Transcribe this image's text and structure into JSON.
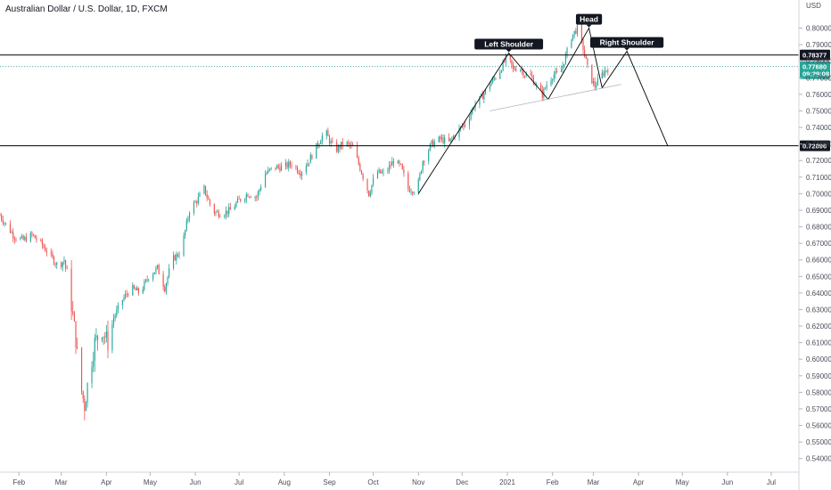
{
  "title": "Australian Dollar / U.S. Dollar, 1D, FXCM",
  "colors": {
    "up": "#26a69a",
    "down": "#ef5350",
    "line": "#000000",
    "current": "#26a69a",
    "grid": "#e0e3eb",
    "text": "#4a4e59"
  },
  "chart_data": {
    "type": "candlestick",
    "currency_label": "USD",
    "y_ticks": [
      0.54,
      0.55,
      0.56,
      0.57,
      0.58,
      0.59,
      0.6,
      0.61,
      0.62,
      0.63,
      0.64,
      0.65,
      0.66,
      0.67,
      0.68,
      0.69,
      0.7,
      0.71,
      0.72,
      0.73,
      0.74,
      0.75,
      0.76,
      0.77,
      0.78,
      0.79,
      0.8
    ],
    "y_range": [
      0.535,
      0.81
    ],
    "x_ticks": [
      {
        "label": "Feb",
        "day": 13
      },
      {
        "label": "Mar",
        "day": 42
      },
      {
        "label": "Apr",
        "day": 73
      },
      {
        "label": "May",
        "day": 103
      },
      {
        "label": "Jun",
        "day": 134
      },
      {
        "label": "Jul",
        "day": 164
      },
      {
        "label": "Aug",
        "day": 195
      },
      {
        "label": "Sep",
        "day": 226
      },
      {
        "label": "Oct",
        "day": 256
      },
      {
        "label": "Nov",
        "day": 287
      },
      {
        "label": "Dec",
        "day": 317
      },
      {
        "label": "2021",
        "day": 348
      },
      {
        "label": "Feb",
        "day": 379
      },
      {
        "label": "Mar",
        "day": 407
      },
      {
        "label": "Apr",
        "day": 438
      },
      {
        "label": "May",
        "day": 468
      },
      {
        "label": "Jun",
        "day": 499
      },
      {
        "label": "Jul",
        "day": 529
      }
    ],
    "x_range": [
      0,
      548
    ],
    "price_path": [
      [
        0,
        0.687
      ],
      [
        5,
        0.68
      ],
      [
        10,
        0.674
      ],
      [
        16,
        0.672
      ],
      [
        22,
        0.675
      ],
      [
        28,
        0.67
      ],
      [
        35,
        0.662
      ],
      [
        40,
        0.656
      ],
      [
        44,
        0.66
      ],
      [
        48,
        0.64
      ],
      [
        52,
        0.612
      ],
      [
        55,
        0.585
      ],
      [
        58,
        0.572
      ],
      [
        61,
        0.59
      ],
      [
        65,
        0.61
      ],
      [
        70,
        0.618
      ],
      [
        74,
        0.61
      ],
      [
        78,
        0.625
      ],
      [
        84,
        0.636
      ],
      [
        90,
        0.643
      ],
      [
        96,
        0.64
      ],
      [
        102,
        0.65
      ],
      [
        108,
        0.655
      ],
      [
        113,
        0.643
      ],
      [
        118,
        0.66
      ],
      [
        124,
        0.665
      ],
      [
        130,
        0.69
      ],
      [
        136,
        0.697
      ],
      [
        140,
        0.703
      ],
      [
        146,
        0.689
      ],
      [
        152,
        0.688
      ],
      [
        158,
        0.69
      ],
      [
        164,
        0.696
      ],
      [
        170,
        0.7
      ],
      [
        176,
        0.698
      ],
      [
        182,
        0.712
      ],
      [
        188,
        0.716
      ],
      [
        194,
        0.716
      ],
      [
        200,
        0.718
      ],
      [
        206,
        0.713
      ],
      [
        212,
        0.72
      ],
      [
        218,
        0.73
      ],
      [
        223,
        0.738
      ],
      [
        226,
        0.732
      ],
      [
        230,
        0.726
      ],
      [
        236,
        0.731
      ],
      [
        242,
        0.728
      ],
      [
        248,
        0.713
      ],
      [
        253,
        0.7
      ],
      [
        258,
        0.713
      ],
      [
        264,
        0.712
      ],
      [
        270,
        0.72
      ],
      [
        275,
        0.716
      ],
      [
        280,
        0.703
      ],
      [
        286,
        0.702
      ],
      [
        290,
        0.72
      ],
      [
        296,
        0.73
      ],
      [
        302,
        0.733
      ],
      [
        308,
        0.731
      ],
      [
        314,
        0.738
      ],
      [
        320,
        0.743
      ],
      [
        325,
        0.753
      ],
      [
        330,
        0.758
      ],
      [
        336,
        0.766
      ],
      [
        342,
        0.773
      ],
      [
        348,
        0.783
      ],
      [
        352,
        0.775
      ],
      [
        356,
        0.777
      ],
      [
        360,
        0.772
      ],
      [
        364,
        0.771
      ],
      [
        368,
        0.765
      ],
      [
        372,
        0.76
      ],
      [
        376,
        0.768
      ],
      [
        380,
        0.772
      ],
      [
        384,
        0.772
      ],
      [
        388,
        0.783
      ],
      [
        392,
        0.795
      ],
      [
        396,
        0.8
      ],
      [
        400,
        0.788
      ],
      [
        404,
        0.772
      ],
      [
        408,
        0.765
      ],
      [
        412,
        0.771
      ],
      [
        416,
        0.775
      ],
      [
        418,
        0.7768
      ]
    ],
    "pattern_lines": [
      [
        [
          287,
          0.7
        ],
        [
          349,
          0.785
        ],
        [
          376,
          0.757
        ],
        [
          404,
          0.8
        ],
        [
          413,
          0.764
        ],
        [
          430,
          0.786
        ],
        [
          458,
          0.7289
        ]
      ]
    ],
    "neckline": [
      [
        336,
        0.75
      ],
      [
        426,
        0.766
      ]
    ],
    "horizontal_levels": [
      {
        "value": 0.78377,
        "label": "0.78377"
      },
      {
        "value": 0.72896,
        "label": "0.72896"
      }
    ],
    "current_price": {
      "value": 0.7768,
      "label": "0.77680",
      "countdown": "09:29:08"
    },
    "annotations": [
      {
        "text": "Left Shoulder",
        "day": 349,
        "value": 0.785
      },
      {
        "text": "Head",
        "day": 404,
        "value": 0.8
      },
      {
        "text": "Right Shoulder",
        "day": 430,
        "value": 0.786
      }
    ]
  }
}
